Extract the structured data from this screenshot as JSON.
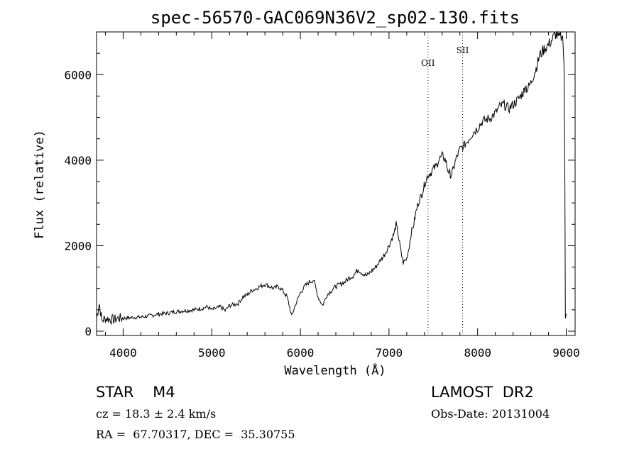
{
  "chart_data": {
    "type": "line",
    "title": "spec-56570-GAC069N36V2_sp02-130.fits",
    "xlabel": "Wavelength (Å)",
    "ylabel": "Flux (relative)",
    "xlim": [
      3700,
      9100
    ],
    "ylim": [
      -100,
      7000
    ],
    "xticks": [
      4000,
      5000,
      6000,
      7000,
      8000,
      9000
    ],
    "yticks": [
      0,
      2000,
      4000,
      6000
    ],
    "xtick_labels": [
      "4000",
      "5000",
      "6000",
      "7000",
      "8000",
      "9000"
    ],
    "ytick_labels": [
      "0",
      "2000",
      "4000",
      "6000"
    ],
    "grid": false,
    "color": "#000000",
    "line_markers": [
      {
        "label": "OII",
        "x": 7440,
        "label_y": 6200
      },
      {
        "label": "SII",
        "x": 7830,
        "label_y": 6500
      }
    ],
    "series": [
      {
        "x": [
          3700,
          3730,
          3760,
          3800,
          3850,
          3900,
          3950,
          4000,
          4100,
          4200,
          4300,
          4400,
          4500,
          4600,
          4700,
          4800,
          4900,
          4950,
          5000,
          5100,
          5150,
          5200,
          5250,
          5300,
          5350,
          5400,
          5450,
          5500,
          5550,
          5600,
          5650,
          5700,
          5750,
          5800,
          5850,
          5880,
          5900,
          5950,
          6000,
          6050,
          6100,
          6150,
          6200,
          6250,
          6300,
          6350,
          6400,
          6500,
          6550,
          6600,
          6650,
          6700,
          6750,
          6800,
          6850,
          6900,
          6950,
          7000,
          7030,
          7060,
          7080,
          7100,
          7120,
          7140,
          7160,
          7200,
          7230,
          7250,
          7280,
          7300,
          7330,
          7350,
          7370,
          7390,
          7410,
          7440,
          7470,
          7500,
          7530,
          7560,
          7600,
          7640,
          7660,
          7680,
          7700,
          7720,
          7740,
          7760,
          7800,
          7850,
          7900,
          7950,
          8000,
          8050,
          8100,
          8150,
          8200,
          8250,
          8300,
          8350,
          8400,
          8450,
          8500,
          8520,
          8540,
          8560,
          8600,
          8640,
          8660,
          8680,
          8700,
          8750,
          8800,
          8850,
          8880,
          8920,
          8960,
          8975,
          8985,
          8990,
          9000
        ],
        "y": [
          300,
          650,
          250,
          300,
          280,
          270,
          310,
          300,
          320,
          330,
          360,
          400,
          420,
          460,
          480,
          500,
          540,
          570,
          500,
          570,
          480,
          600,
          620,
          650,
          800,
          850,
          950,
          1000,
          1050,
          1100,
          1050,
          1000,
          1050,
          950,
          800,
          550,
          350,
          650,
          900,
          1050,
          1150,
          1200,
          800,
          600,
          850,
          950,
          1050,
          1150,
          1250,
          1300,
          1450,
          1350,
          1300,
          1400,
          1500,
          1650,
          1800,
          2000,
          2150,
          2300,
          2500,
          2300,
          2050,
          1800,
          1600,
          1700,
          2000,
          2300,
          2500,
          2750,
          3000,
          3100,
          3200,
          3350,
          3500,
          3650,
          3700,
          3800,
          3850,
          4000,
          4100,
          4000,
          3800,
          3700,
          3650,
          3750,
          3900,
          4050,
          4250,
          4350,
          4500,
          4650,
          4750,
          4900,
          4950,
          5000,
          5100,
          5250,
          5300,
          5200,
          5300,
          5400,
          5550,
          5600,
          5750,
          5650,
          5800,
          6050,
          6150,
          6300,
          6450,
          6600,
          6700,
          6850,
          6950,
          6850,
          6900,
          6200,
          3500,
          300,
          400
        ]
      }
    ]
  },
  "info": {
    "object_class": "STAR    M4",
    "survey": "LAMOST  DR2",
    "redshift": "cz = 18.3 ± 2.4 km/s",
    "obs_date": "Obs-Date: 20131004",
    "coords": "RA =  67.70317, DEC =  35.30755"
  }
}
